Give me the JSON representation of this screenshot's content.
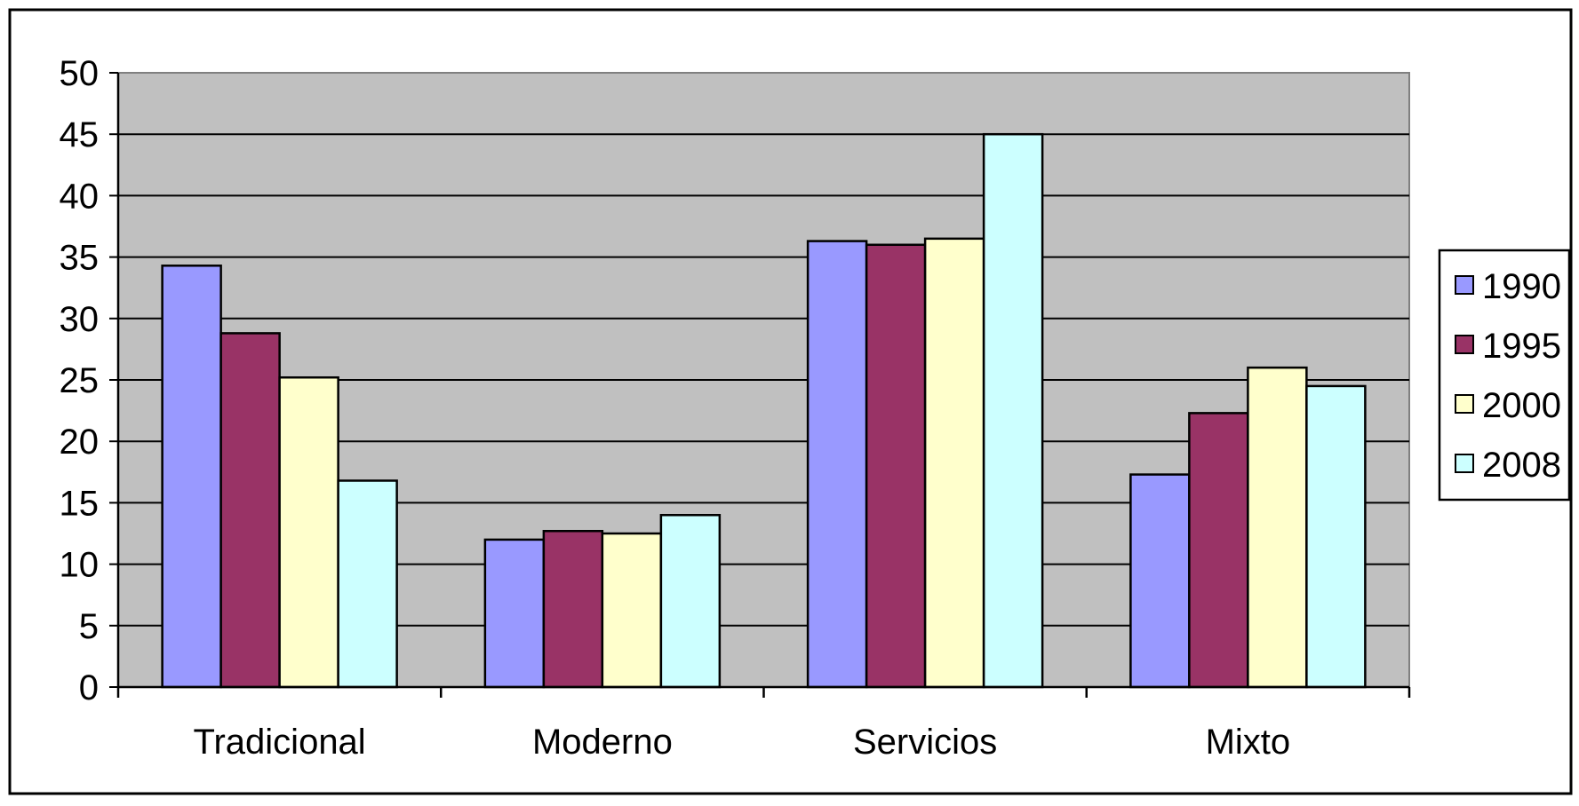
{
  "chart_data": {
    "type": "bar",
    "title": "",
    "xlabel": "",
    "ylabel": "",
    "categories": [
      "Tradicional",
      "Moderno",
      "Servicios",
      "Mixto"
    ],
    "series": [
      {
        "name": "1990",
        "color": "#9999FF",
        "values": [
          34.3,
          12.0,
          36.3,
          17.3
        ]
      },
      {
        "name": "1995",
        "color": "#993366",
        "values": [
          28.8,
          12.7,
          36.0,
          22.3
        ]
      },
      {
        "name": "2000",
        "color": "#FFFFCC",
        "values": [
          25.2,
          12.5,
          36.5,
          26.0
        ]
      },
      {
        "name": "2008",
        "color": "#CCFFFF",
        "values": [
          16.8,
          14.0,
          45.0,
          24.5
        ]
      }
    ],
    "ylim": [
      0,
      50
    ],
    "yticks": [
      "0",
      "5",
      "10",
      "15",
      "20",
      "25",
      "30",
      "35",
      "40",
      "45",
      "50"
    ],
    "grid": true,
    "plot_background": "#C0C0C0",
    "legend_position": "right"
  }
}
